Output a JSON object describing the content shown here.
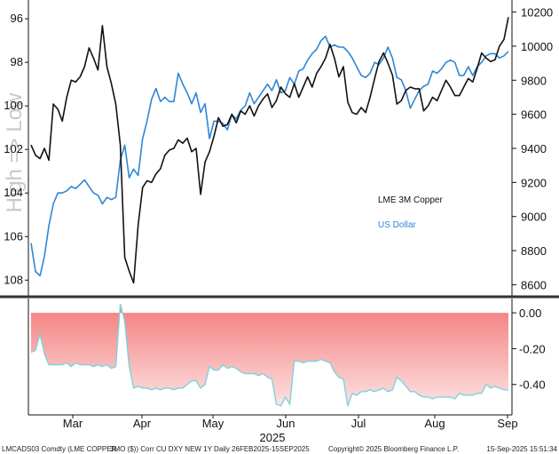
{
  "colors": {
    "copper": "#111111",
    "dollar": "#2f86d6",
    "corr_fill_top": "#f47c7c",
    "corr_fill_bottom": "#fde2e2",
    "corr_line": "#7fd3dc",
    "divider": "#333333"
  },
  "chart_data": [
    {
      "type": "line",
      "title": "",
      "ylabel_left": "High => Low",
      "left_axis": {
        "ticks": [
          "96",
          "98",
          "100",
          "102",
          "104",
          "106",
          "108"
        ],
        "range": [
          95.3,
          108.6
        ],
        "inverted": true
      },
      "right_axis": {
        "ticks": [
          "10200",
          "10000",
          "9800",
          "9600",
          "9400",
          "9200",
          "9000",
          "8800",
          "8600"
        ],
        "range": [
          8550,
          10250
        ]
      },
      "legend": {
        "placement": "right-middle",
        "entries": [
          "LME 3M Copper",
          "US Dollar"
        ]
      },
      "series": [
        {
          "name": "LME 3M Copper",
          "axis": "right",
          "values": [
            9420,
            9360,
            9340,
            9400,
            9330,
            9660,
            9630,
            9560,
            9700,
            9800,
            9790,
            9820,
            9880,
            9990,
            9930,
            9860,
            10120,
            9880,
            9780,
            9660,
            9420,
            8760,
            8680,
            8610,
            8950,
            9170,
            9210,
            9200,
            9250,
            9280,
            9360,
            9390,
            9400,
            9450,
            9430,
            9460,
            9380,
            9400,
            9130,
            9320,
            9380,
            9470,
            9580,
            9530,
            9540,
            9600,
            9550,
            9620,
            9600,
            9650,
            9590,
            9650,
            9690,
            9720,
            9640,
            9680,
            9760,
            9720,
            9700,
            9780,
            9700,
            9760,
            9820,
            9760,
            9840,
            9880,
            9930,
            10010,
            9930,
            9820,
            9880,
            9670,
            9610,
            9600,
            9640,
            9610,
            9700,
            9810,
            9910,
            9960,
            9900,
            9830,
            9660,
            9680,
            9740,
            9760,
            9750,
            9750,
            9620,
            9650,
            9700,
            9680,
            9740,
            9800,
            9760,
            9710,
            9710,
            9760,
            9810,
            9790,
            9870,
            9960,
            9930,
            9910,
            9920,
            10000,
            10040,
            10170
          ]
        },
        {
          "name": "US Dollar",
          "axis": "left",
          "values": [
            106.3,
            107.6,
            107.8,
            106.9,
            105.5,
            104.5,
            104.0,
            104.0,
            103.9,
            103.7,
            103.8,
            103.6,
            103.4,
            103.7,
            104.0,
            104.1,
            104.5,
            104.2,
            104.3,
            104.2,
            102.5,
            101.8,
            103.3,
            102.9,
            103.2,
            101.5,
            100.7,
            99.7,
            99.2,
            99.8,
            99.6,
            99.8,
            99.8,
            98.5,
            99.0,
            99.4,
            99.9,
            99.4,
            100.3,
            99.9,
            101.5,
            100.7,
            100.7,
            100.8,
            101.1,
            100.4,
            100.6,
            100.2,
            100.0,
            99.4,
            99.9,
            99.6,
            99.3,
            99.0,
            99.3,
            98.8,
            99.4,
            99.3,
            98.7,
            99.0,
            98.4,
            98.3,
            97.9,
            97.6,
            97.4,
            97.0,
            96.8,
            97.3,
            97.2,
            97.3,
            97.3,
            97.5,
            97.8,
            98.2,
            98.6,
            98.7,
            98.5,
            98.0,
            98.1,
            97.8,
            97.3,
            97.8,
            98.7,
            98.8,
            99.3,
            100.1,
            99.7,
            99.3,
            99.1,
            99.0,
            98.4,
            98.5,
            98.3,
            98.0,
            97.9,
            98.0,
            98.6,
            98.6,
            98.2,
            98.6,
            98.2,
            98.0,
            97.7,
            97.6,
            97.6,
            97.8,
            97.7,
            97.5
          ]
        }
      ]
    },
    {
      "type": "area",
      "title": "",
      "right_axis": {
        "ticks": [
          "0.00",
          "-0.20",
          "-0.40"
        ],
        "range": [
          -0.56,
          0.06
        ]
      },
      "series": [
        {
          "name": "",
          "values": [
            -0.22,
            -0.21,
            -0.12,
            -0.23,
            -0.29,
            -0.29,
            -0.29,
            -0.29,
            -0.28,
            -0.3,
            -0.28,
            -0.29,
            -0.29,
            -0.29,
            -0.3,
            -0.29,
            -0.3,
            -0.29,
            -0.31,
            -0.3,
            0.05,
            -0.05,
            -0.3,
            -0.42,
            -0.41,
            -0.42,
            -0.42,
            -0.43,
            -0.42,
            -0.43,
            -0.42,
            -0.42,
            -0.43,
            -0.42,
            -0.42,
            -0.4,
            -0.38,
            -0.38,
            -0.42,
            -0.4,
            -0.3,
            -0.32,
            -0.32,
            -0.29,
            -0.31,
            -0.3,
            -0.31,
            -0.33,
            -0.34,
            -0.34,
            -0.34,
            -0.35,
            -0.34,
            -0.36,
            -0.37,
            -0.51,
            -0.52,
            -0.47,
            -0.51,
            -0.27,
            -0.27,
            -0.28,
            -0.27,
            -0.27,
            -0.27,
            -0.26,
            -0.27,
            -0.28,
            -0.33,
            -0.36,
            -0.37,
            -0.52,
            -0.45,
            -0.46,
            -0.44,
            -0.44,
            -0.43,
            -0.44,
            -0.43,
            -0.42,
            -0.44,
            -0.43,
            -0.36,
            -0.38,
            -0.41,
            -0.44,
            -0.44,
            -0.46,
            -0.47,
            -0.47,
            -0.48,
            -0.47,
            -0.47,
            -0.47,
            -0.47,
            -0.48,
            -0.45,
            -0.46,
            -0.46,
            -0.46,
            -0.45,
            -0.45,
            -0.4,
            -0.42,
            -0.41,
            -0.42,
            -0.43,
            -0.43
          ]
        }
      ]
    }
  ],
  "xaxis": {
    "months": [
      "Mar",
      "Apr",
      "May",
      "Jun",
      "Jul",
      "Aug",
      "Sep"
    ],
    "year": "2025"
  },
  "footer": {
    "left": "LMCADS03 Comdty (LME COPPER",
    "middle": "3MO ($)) Corr CU DXY NEW 1Y  Daily 26FEB2025-15SEP2025",
    "copyright": "Copyright© 2025 Bloomberg Finance L.P.",
    "timestamp": "15-Sep-2025 15:51:34"
  }
}
